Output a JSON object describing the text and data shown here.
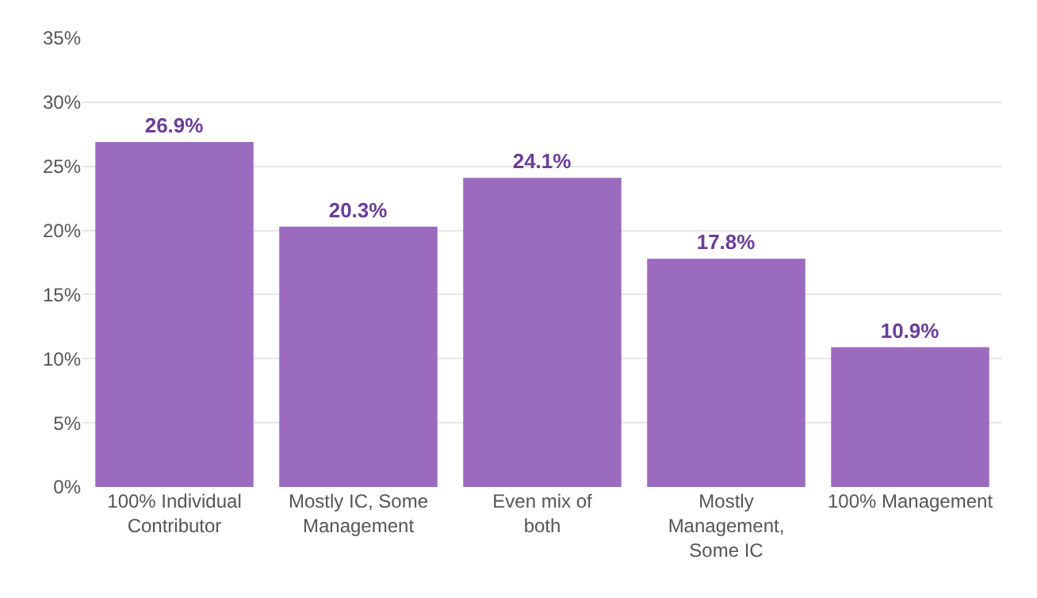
{
  "chart_data": {
    "type": "bar",
    "categories": [
      "100% Individual Contributor",
      "Mostly IC, Some Management",
      "Even mix of both",
      "Mostly Management, Some IC",
      "100% Management"
    ],
    "values": [
      26.9,
      20.3,
      24.1,
      17.8,
      10.9
    ],
    "value_labels": [
      "26.9%",
      "20.3%",
      "24.1%",
      "17.8%",
      "10.9%"
    ],
    "color": "#9b6bbf",
    "ylim": [
      0,
      35
    ],
    "yticks": [
      {
        "value": 0,
        "label": "0%"
      },
      {
        "value": 5,
        "label": "5%"
      },
      {
        "value": 10,
        "label": "10%"
      },
      {
        "value": 15,
        "label": "15%"
      },
      {
        "value": 20,
        "label": "20%"
      },
      {
        "value": 25,
        "label": "25%"
      },
      {
        "value": 30,
        "label": "30%"
      },
      {
        "value": 35,
        "label": "35%"
      }
    ],
    "grid": "y"
  }
}
